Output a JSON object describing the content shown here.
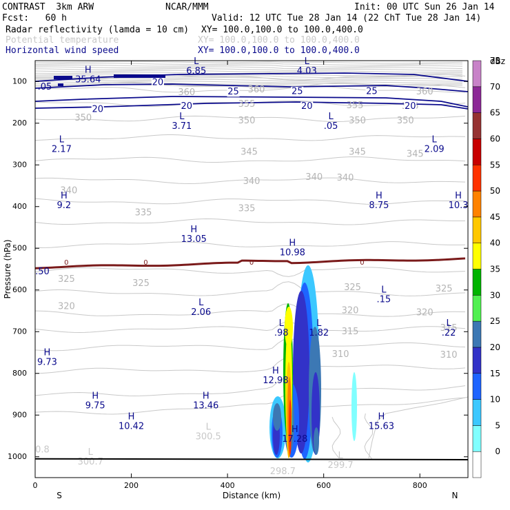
{
  "header": {
    "model": "CONTRAST  3km ARW",
    "org": "NCAR/MMM",
    "init": "Init: 00 UTC Sun 26 Jan 14",
    "fcst": "Fcst:   60 h",
    "valid": "Valid: 12 UTC Tue 28 Jan 14 (22 ChT Tue 28 Jan 14)",
    "fields": [
      {
        "name": "Radar reflectivity (lamda = 10 cm)",
        "xy": "XY= 100.0,100.0 to 100.0,400.0",
        "color": "#000000"
      },
      {
        "name": "Potential temperature",
        "xy": "XY= 100.0,100.0 to 100.0,400.0",
        "color": "#c8c8c8"
      },
      {
        "name": "Horizontal wind speed",
        "xy": "XY= 100.0,100.0 to 100.0,400.0",
        "color": "#0a0a8c"
      }
    ]
  },
  "chart_data": {
    "type": "contour-cross-section",
    "xlabel": "Distance (km)",
    "ylabel": "Pressure (hPa)",
    "xlim": [
      0,
      900
    ],
    "ylim": [
      1050,
      50
    ],
    "xticks": [
      0,
      200,
      400,
      600,
      800
    ],
    "yticks": [
      100,
      200,
      300,
      400,
      500,
      600,
      700,
      800,
      900,
      1000
    ],
    "x_end_labels": {
      "left": "S",
      "right": "N"
    },
    "colorbar": {
      "unit": "dBz",
      "levels": [
        0,
        5,
        10,
        15,
        20,
        25,
        30,
        35,
        40,
        45,
        50,
        55,
        60,
        65,
        70,
        75
      ],
      "colors": [
        "#ffffff",
        "#80ffff",
        "#3cc8ff",
        "#1e64ff",
        "#3232c8",
        "#3c78b4",
        "#50f050",
        "#00b400",
        "#ffff00",
        "#ffc800",
        "#ff8200",
        "#ff3200",
        "#c80000",
        "#963232",
        "#8c2896",
        "#c882c8"
      ]
    },
    "theta_labels": [
      {
        "v": "360",
        "x": 315,
        "p": 127
      },
      {
        "v": "360",
        "x": 460,
        "p": 120
      },
      {
        "v": "360",
        "x": 810,
        "p": 125
      },
      {
        "v": "355",
        "x": 440,
        "p": 155
      },
      {
        "v": "355",
        "x": 665,
        "p": 158
      },
      {
        "v": "355",
        "x": 780,
        "p": 160
      },
      {
        "v": "350",
        "x": 100,
        "p": 188
      },
      {
        "v": "350",
        "x": 440,
        "p": 195
      },
      {
        "v": "350",
        "x": 670,
        "p": 195
      },
      {
        "v": "350",
        "x": 770,
        "p": 195
      },
      {
        "v": "345",
        "x": 445,
        "p": 270
      },
      {
        "v": "345",
        "x": 670,
        "p": 270
      },
      {
        "v": "345",
        "x": 790,
        "p": 275
      },
      {
        "v": "340",
        "x": 70,
        "p": 362
      },
      {
        "v": "340",
        "x": 450,
        "p": 340
      },
      {
        "v": "340",
        "x": 580,
        "p": 330
      },
      {
        "v": "340",
        "x": 645,
        "p": 332
      },
      {
        "v": "335",
        "x": 225,
        "p": 415
      },
      {
        "v": "335",
        "x": 440,
        "p": 405
      },
      {
        "v": "325",
        "x": 65,
        "p": 575
      },
      {
        "v": "325",
        "x": 220,
        "p": 585
      },
      {
        "v": "325",
        "x": 660,
        "p": 595
      },
      {
        "v": "325",
        "x": 850,
        "p": 598
      },
      {
        "v": "320",
        "x": 65,
        "p": 640
      },
      {
        "v": "320",
        "x": 655,
        "p": 650
      },
      {
        "v": "320",
        "x": 810,
        "p": 655
      },
      {
        "v": "315",
        "x": 655,
        "p": 700
      },
      {
        "v": "315",
        "x": 860,
        "p": 692
      },
      {
        "v": "310",
        "x": 635,
        "p": 755
      },
      {
        "v": "310",
        "x": 860,
        "p": 757
      }
    ],
    "wind_labels": [
      {
        "v": "20",
        "x": 255,
        "p": 103
      },
      {
        "v": "25",
        "x": 412,
        "p": 125
      },
      {
        "v": "25",
        "x": 545,
        "p": 124
      },
      {
        "v": "25",
        "x": 700,
        "p": 124
      },
      {
        "v": "20",
        "x": 130,
        "p": 167
      },
      {
        "v": "20",
        "x": 315,
        "p": 160
      },
      {
        "v": "20",
        "x": 565,
        "p": 160
      },
      {
        "v": "20",
        "x": 780,
        "p": 160
      }
    ],
    "freezing_label": {
      "v": "0",
      "xs": [
        65,
        230,
        450,
        680
      ],
      "p": 534
    },
    "extrema": [
      {
        "t": "H",
        "v": "35.64",
        "x": 110,
        "p": 100,
        "c": "#0a0a8c"
      },
      {
        "t": "L",
        "v": "6.85",
        "x": 335,
        "p": 80,
        "c": "#0a0a8c"
      },
      {
        "t": "L",
        "v": "4.03",
        "x": 565,
        "p": 80,
        "c": "#0a0a8c"
      },
      {
        "t": "",
        "v": ".05",
        "x": 20,
        "p": 118,
        "c": "#0a0a8c"
      },
      {
        "t": "L",
        "v": "3.71",
        "x": 305,
        "p": 212,
        "c": "#0a0a8c"
      },
      {
        "t": "L",
        "v": ".05",
        "x": 615,
        "p": 212,
        "c": "#0a0a8c"
      },
      {
        "t": "L",
        "v": "2.17",
        "x": 55,
        "p": 267,
        "c": "#0a0a8c"
      },
      {
        "t": "L",
        "v": "2.09",
        "x": 830,
        "p": 267,
        "c": "#0a0a8c"
      },
      {
        "t": "H",
        "v": "9.2",
        "x": 60,
        "p": 402,
        "c": "#0a0a8c"
      },
      {
        "t": "H",
        "v": "8.75",
        "x": 715,
        "p": 402,
        "c": "#0a0a8c"
      },
      {
        "t": "H",
        "v": "10.3",
        "x": 880,
        "p": 402,
        "c": "#0a0a8c"
      },
      {
        "t": "H",
        "v": "13.05",
        "x": 330,
        "p": 483,
        "c": "#0a0a8c"
      },
      {
        "t": "H",
        "v": "10.98",
        "x": 535,
        "p": 515,
        "c": "#0a0a8c"
      },
      {
        "t": "",
        "v": ".50",
        "x": 15,
        "p": 561,
        "c": "#0a0a8c"
      },
      {
        "t": "L",
        "v": ".15",
        "x": 725,
        "p": 628,
        "c": "#0a0a8c"
      },
      {
        "t": "L",
        "v": "2.06",
        "x": 345,
        "p": 658,
        "c": "#0a0a8c"
      },
      {
        "t": "L",
        "v": ".98",
        "x": 512,
        "p": 708,
        "c": "#0a0a8c"
      },
      {
        "t": "L",
        "v": "1.82",
        "x": 590,
        "p": 708,
        "c": "#0a0a8c"
      },
      {
        "t": "L",
        "v": ".22",
        "x": 860,
        "p": 708,
        "c": "#0a0a8c"
      },
      {
        "t": "H",
        "v": "9.73",
        "x": 25,
        "p": 778,
        "c": "#0a0a8c"
      },
      {
        "t": "H",
        "v": "12.98",
        "x": 500,
        "p": 822,
        "c": "#0a0a8c"
      },
      {
        "t": "H",
        "v": "9.75",
        "x": 125,
        "p": 882,
        "c": "#0a0a8c"
      },
      {
        "t": "H",
        "v": "13.46",
        "x": 355,
        "p": 882,
        "c": "#0a0a8c"
      },
      {
        "t": "H",
        "v": "10.42",
        "x": 200,
        "p": 932,
        "c": "#0a0a8c"
      },
      {
        "t": "H",
        "v": "15.63",
        "x": 720,
        "p": 932,
        "c": "#0a0a8c"
      },
      {
        "t": "H",
        "v": "17.28",
        "x": 540,
        "p": 962,
        "c": "#0a0a8c"
      },
      {
        "t": "L",
        "v": "300.5",
        "x": 360,
        "p": 957,
        "c": "#c8c8c8"
      },
      {
        "t": "L",
        "v": "300.7",
        "x": 115,
        "p": 1017,
        "c": "#c8c8c8"
      },
      {
        "t": "",
        "v": "0.8",
        "x": 15,
        "p": 988,
        "c": "#c8c8c8"
      },
      {
        "t": "L",
        "v": "299.7",
        "x": 635,
        "p": 1025,
        "c": "#c8c8c8"
      },
      {
        "t": "",
        "v": "298.7",
        "x": 515,
        "p": 1040,
        "c": "#c8c8c8"
      }
    ]
  }
}
